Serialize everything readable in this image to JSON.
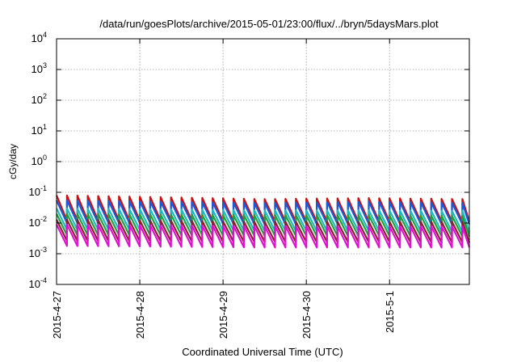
{
  "chart_data": {
    "type": "line",
    "title": "/data/run/goesPlots/archive/2015-05-01/23:00/flux/../bryn/5daysMars.plot",
    "xlabel": "Coordinated Universal Time (UTC)",
    "ylabel": "cGy/day",
    "yscale": "log",
    "ylim": [
      0.0001,
      10000
    ],
    "xlim": [
      "2015-04-27",
      "2015-05-01T23:00"
    ],
    "y_ticks": [
      {
        "base": "10",
        "exp": "-4"
      },
      {
        "base": "10",
        "exp": "-3"
      },
      {
        "base": "10",
        "exp": "-2"
      },
      {
        "base": "10",
        "exp": "-1"
      },
      {
        "base": "10",
        "exp": "0"
      },
      {
        "base": "10",
        "exp": "1"
      },
      {
        "base": "10",
        "exp": "2"
      },
      {
        "base": "10",
        "exp": "3"
      },
      {
        "base": "10",
        "exp": "4"
      }
    ],
    "x_ticks": [
      "2015-4-27",
      "2015-4-28",
      "2015-4-29",
      "2015-4-30",
      "2015-5-1"
    ],
    "grid": true,
    "sawtooth_period_hours": 3,
    "series": [
      {
        "color": "#cc1010",
        "start_values": [
          0.08,
          0.07,
          0.06,
          0.065,
          0.06
        ],
        "end_values": [
          0.012,
          0.012,
          0.011,
          0.011,
          0.011
        ]
      },
      {
        "color": "#1a5ad8",
        "start_values": [
          0.055,
          0.05,
          0.045,
          0.05,
          0.045
        ],
        "end_values": [
          0.01,
          0.01,
          0.009,
          0.0095,
          0.009
        ]
      },
      {
        "color": "#20b8c0",
        "start_values": [
          0.03,
          0.028,
          0.026,
          0.026,
          0.025
        ],
        "end_values": [
          0.006,
          0.006,
          0.0055,
          0.0055,
          0.005
        ]
      },
      {
        "color": "#1ea040",
        "start_values": [
          0.02,
          0.019,
          0.018,
          0.018,
          0.017
        ],
        "end_values": [
          0.004,
          0.004,
          0.0038,
          0.0038,
          0.0036
        ]
      },
      {
        "color": "#8a2030",
        "start_values": [
          0.013,
          0.012,
          0.011,
          0.011,
          0.011
        ],
        "end_values": [
          0.0026,
          0.0025,
          0.0024,
          0.0024,
          0.0023
        ]
      },
      {
        "color": "#e010d0",
        "start_values": [
          0.009,
          0.0085,
          0.008,
          0.008,
          0.0078
        ],
        "end_values": [
          0.0018,
          0.0017,
          0.0016,
          0.0016,
          0.0016
        ]
      }
    ]
  }
}
